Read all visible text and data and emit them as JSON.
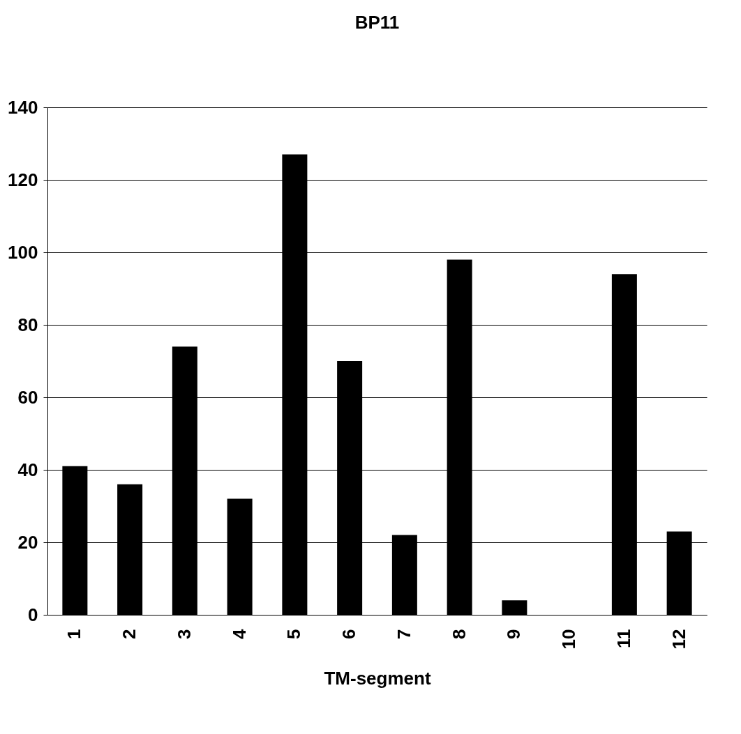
{
  "chart_data": {
    "type": "bar",
    "title": "BP11",
    "xlabel": "TM-segment",
    "categories": [
      "1",
      "2",
      "3",
      "4",
      "5",
      "6",
      "7",
      "8",
      "9",
      "10",
      "11",
      "12"
    ],
    "values": [
      41,
      36,
      74,
      32,
      127,
      70,
      22,
      98,
      4,
      0,
      94,
      23
    ],
    "color": "#000000",
    "ylim": [
      0,
      140
    ],
    "yticks": [
      0,
      20,
      40,
      60,
      80,
      100,
      120,
      140
    ],
    "grid": "y"
  }
}
